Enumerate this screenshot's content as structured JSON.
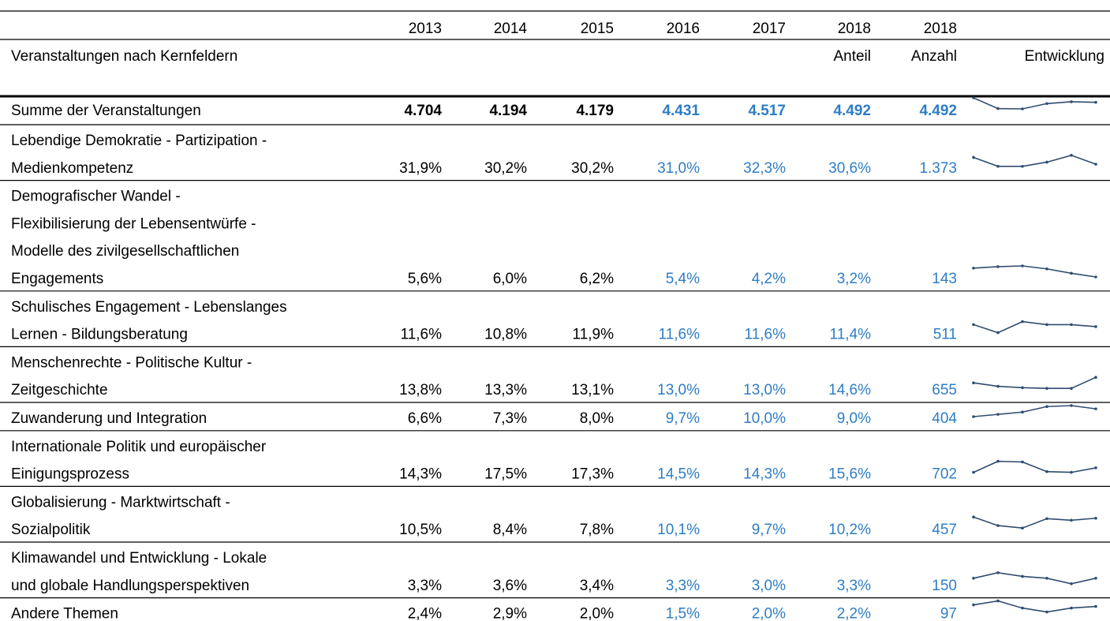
{
  "header": {
    "years": [
      "2013",
      "2014",
      "2015",
      "2016",
      "2017",
      "2018",
      "2018"
    ],
    "title": "Veranstaltungen nach Kernfeldern",
    "anteil": "Anteil",
    "anzahl": "Anzahl",
    "entwicklung": "Entwicklung"
  },
  "table": {
    "rows": [
      {
        "label": [
          "Summe der Veranstaltungen"
        ],
        "cells": [
          "4.704",
          "4.194",
          "4.179",
          "4.431",
          "4.517",
          "4.492",
          "4.492"
        ]
      },
      {
        "label": [
          "Lebendige Demokratie - Partizipation -",
          "Medienkompetenz"
        ],
        "cells": [
          "31,9%",
          "30,2%",
          "30,2%",
          "31,0%",
          "32,3%",
          "30,6%",
          "1.373"
        ]
      },
      {
        "label": [
          "Demografischer Wandel -",
          "Flexibilisierung der Lebensentwürfe -",
          "Modelle des zivilgesellschaftlichen",
          "Engagements"
        ],
        "cells": [
          "5,6%",
          "6,0%",
          "6,2%",
          "5,4%",
          "4,2%",
          "3,2%",
          "143"
        ]
      },
      {
        "label": [
          "Schulisches Engagement - Lebenslanges",
          "Lernen - Bildungsberatung"
        ],
        "cells": [
          "11,6%",
          "10,8%",
          "11,9%",
          "11,6%",
          "11,6%",
          "11,4%",
          "511"
        ]
      },
      {
        "label": [
          "Menschenrechte - Politische Kultur -",
          "Zeitgeschichte"
        ],
        "cells": [
          "13,8%",
          "13,3%",
          "13,1%",
          "13,0%",
          "13,0%",
          "14,6%",
          "655"
        ]
      },
      {
        "label": [
          "Zuwanderung und Integration"
        ],
        "cells": [
          "6,6%",
          "7,3%",
          "8,0%",
          "9,7%",
          "10,0%",
          "9,0%",
          "404"
        ]
      },
      {
        "label": [
          "Internationale Politik und europäischer",
          "Einigungsprozess"
        ],
        "cells": [
          "14,3%",
          "17,5%",
          "17,3%",
          "14,5%",
          "14,3%",
          "15,6%",
          "702"
        ]
      },
      {
        "label": [
          "Globalisierung - Marktwirtschaft -",
          "Sozialpolitik"
        ],
        "cells": [
          "10,5%",
          "8,4%",
          "7,8%",
          "10,1%",
          "9,7%",
          "10,2%",
          "457"
        ]
      },
      {
        "label": [
          "Klimawandel und Entwicklung - Lokale",
          "und globale Handlungsperspektiven"
        ],
        "cells": [
          "3,3%",
          "3,6%",
          "3,4%",
          "3,3%",
          "3,0%",
          "3,3%",
          "150"
        ]
      },
      {
        "label": [
          "Andere Themen"
        ],
        "cells": [
          "2,4%",
          "2,9%",
          "2,0%",
          "1,5%",
          "2,0%",
          "2,2%",
          "97"
        ]
      }
    ]
  }
}
